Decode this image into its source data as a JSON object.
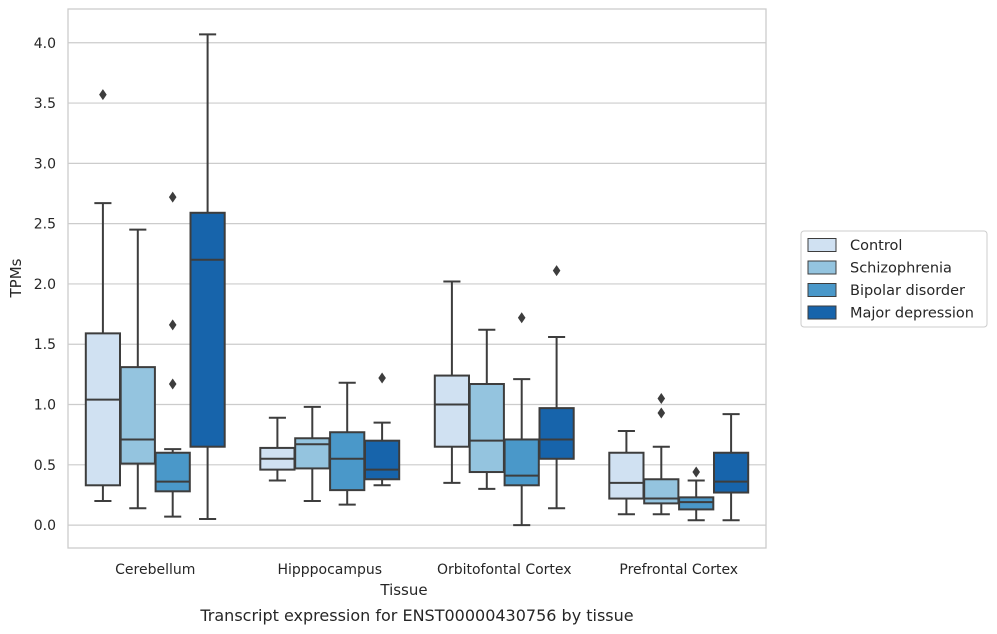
{
  "chart_data": {
    "type": "box",
    "title": "",
    "xlabel": "Tissue",
    "ylabel": "TPMs",
    "caption": "Transcript expression for ENST00000430756 by tissue",
    "ylim": [
      -0.19,
      4.28
    ],
    "yticks": [
      0.0,
      0.5,
      1.0,
      1.5,
      2.0,
      2.5,
      3.0,
      3.5,
      4.0
    ],
    "ytick_labels": [
      "0.0",
      "0.5",
      "1.0",
      "1.5",
      "2.0",
      "2.5",
      "3.0",
      "3.5",
      "4.0"
    ],
    "grid": "horizontal",
    "legend_position": "right",
    "categories": [
      "Cerebellum",
      "Hipppocampus",
      "Orbitofontal Cortex",
      "Prefrontal Cortex"
    ],
    "series": [
      {
        "name": "Control",
        "color": "#d0e1f2",
        "boxes": [
          {
            "whisker_low": 0.2,
            "q1": 0.33,
            "median": 1.04,
            "q3": 1.59,
            "whisker_high": 2.67,
            "outliers": [
              3.57
            ]
          },
          {
            "whisker_low": 0.37,
            "q1": 0.46,
            "median": 0.55,
            "q3": 0.64,
            "whisker_high": 0.89,
            "outliers": []
          },
          {
            "whisker_low": 0.35,
            "q1": 0.65,
            "median": 1.0,
            "q3": 1.24,
            "whisker_high": 2.02,
            "outliers": []
          },
          {
            "whisker_low": 0.09,
            "q1": 0.22,
            "median": 0.35,
            "q3": 0.6,
            "whisker_high": 0.78,
            "outliers": []
          }
        ]
      },
      {
        "name": "Schizophrenia",
        "color": "#94c4df",
        "boxes": [
          {
            "whisker_low": 0.14,
            "q1": 0.51,
            "median": 0.71,
            "q3": 1.31,
            "whisker_high": 2.45,
            "outliers": []
          },
          {
            "whisker_low": 0.2,
            "q1": 0.47,
            "median": 0.67,
            "q3": 0.72,
            "whisker_high": 0.98,
            "outliers": []
          },
          {
            "whisker_low": 0.3,
            "q1": 0.44,
            "median": 0.7,
            "q3": 1.17,
            "whisker_high": 1.62,
            "outliers": []
          },
          {
            "whisker_low": 0.09,
            "q1": 0.18,
            "median": 0.22,
            "q3": 0.38,
            "whisker_high": 0.65,
            "outliers": [
              0.93,
              1.05
            ]
          }
        ]
      },
      {
        "name": "Bipolar disorder",
        "color": "#4a98c9",
        "boxes": [
          {
            "whisker_low": 0.07,
            "q1": 0.28,
            "median": 0.36,
            "q3": 0.6,
            "whisker_high": 0.63,
            "outliers": [
              1.17,
              1.66,
              2.72
            ]
          },
          {
            "whisker_low": 0.17,
            "q1": 0.29,
            "median": 0.55,
            "q3": 0.77,
            "whisker_high": 1.18,
            "outliers": []
          },
          {
            "whisker_low": 0.0,
            "q1": 0.33,
            "median": 0.41,
            "q3": 0.71,
            "whisker_high": 1.21,
            "outliers": [
              1.72
            ]
          },
          {
            "whisker_low": 0.04,
            "q1": 0.13,
            "median": 0.19,
            "q3": 0.23,
            "whisker_high": 0.37,
            "outliers": [
              0.44
            ]
          }
        ]
      },
      {
        "name": "Major depression",
        "color": "#1764ab",
        "boxes": [
          {
            "whisker_low": 0.05,
            "q1": 0.65,
            "median": 2.2,
            "q3": 2.59,
            "whisker_high": 4.07,
            "outliers": []
          },
          {
            "whisker_low": 0.33,
            "q1": 0.38,
            "median": 0.46,
            "q3": 0.7,
            "whisker_high": 0.85,
            "outliers": [
              1.22
            ]
          },
          {
            "whisker_low": 0.14,
            "q1": 0.55,
            "median": 0.71,
            "q3": 0.97,
            "whisker_high": 1.56,
            "outliers": [
              2.11
            ]
          },
          {
            "whisker_low": 0.04,
            "q1": 0.27,
            "median": 0.36,
            "q3": 0.6,
            "whisker_high": 0.92,
            "outliers": []
          }
        ]
      }
    ]
  }
}
